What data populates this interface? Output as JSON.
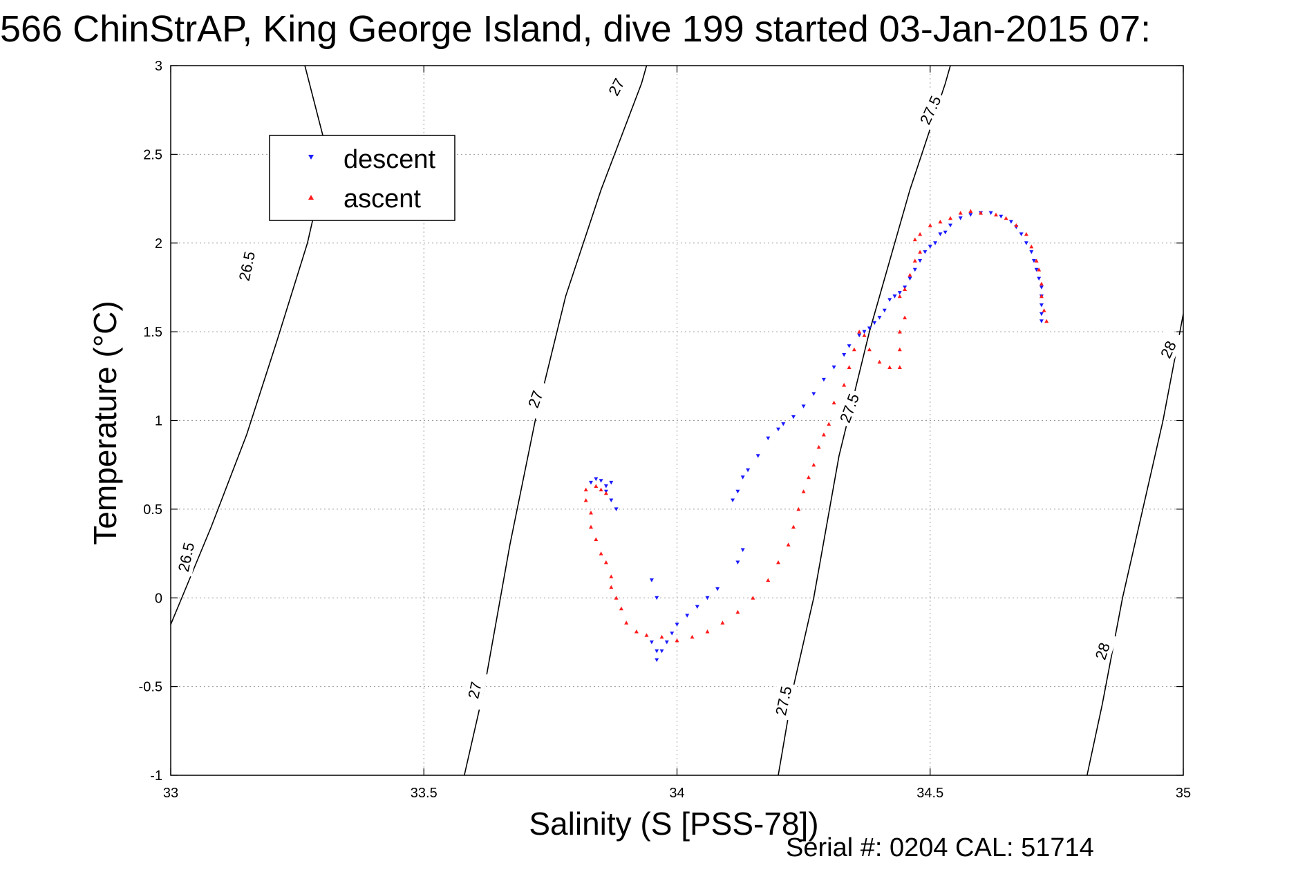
{
  "title": "566 ChinStrAP, King George Island, dive 199 started 03-Jan-2015 07:",
  "footer": "Serial #: 0204  CAL: 51714",
  "chart_data": {
    "type": "scatter",
    "title": "566 ChinStrAP, King George Island, dive 199 started 03-Jan-2015 07:",
    "xlabel": "Salinity (S [PSS-78])",
    "ylabel": "Temperature (°C)",
    "xlim": [
      33,
      35
    ],
    "ylim": [
      -1,
      3
    ],
    "xticks": [
      33,
      33.5,
      34,
      34.5,
      35
    ],
    "xtick_labels": [
      "33",
      "33.5",
      "34",
      "34.5",
      "35"
    ],
    "yticks": [
      -1,
      -0.5,
      0,
      0.5,
      1,
      1.5,
      2,
      2.5,
      3
    ],
    "ytick_labels": [
      "-1",
      "-0.5",
      "0",
      "0.5",
      "1",
      "1.5",
      "2",
      "2.5",
      "3"
    ],
    "grid": true,
    "legend": {
      "position": "upper-left",
      "entries": [
        "descent",
        "ascent"
      ]
    },
    "colors": {
      "descent": "#1a1aff",
      "ascent": "#ff1a1a"
    },
    "series": [
      {
        "name": "descent",
        "marker": "triangle-down",
        "points": [
          [
            34.72,
            1.56
          ],
          [
            34.72,
            1.6
          ],
          [
            34.72,
            1.65
          ],
          [
            34.72,
            1.7
          ],
          [
            34.72,
            1.75
          ],
          [
            34.715,
            1.8
          ],
          [
            34.71,
            1.85
          ],
          [
            34.705,
            1.9
          ],
          [
            34.7,
            1.95
          ],
          [
            34.69,
            2.0
          ],
          [
            34.68,
            2.05
          ],
          [
            34.67,
            2.09
          ],
          [
            34.66,
            2.12
          ],
          [
            34.64,
            2.15
          ],
          [
            34.62,
            2.17
          ],
          [
            34.6,
            2.17
          ],
          [
            34.58,
            2.16
          ],
          [
            34.56,
            2.14
          ],
          [
            34.54,
            2.1
          ],
          [
            34.53,
            2.06
          ],
          [
            34.52,
            2.05
          ],
          [
            34.51,
            2.0
          ],
          [
            34.5,
            1.98
          ],
          [
            34.49,
            1.95
          ],
          [
            34.48,
            1.9
          ],
          [
            34.47,
            1.85
          ],
          [
            34.46,
            1.8
          ],
          [
            34.45,
            1.75
          ],
          [
            34.44,
            1.72
          ],
          [
            34.43,
            1.7
          ],
          [
            34.42,
            1.68
          ],
          [
            34.41,
            1.62
          ],
          [
            34.4,
            1.58
          ],
          [
            34.39,
            1.55
          ],
          [
            34.38,
            1.52
          ],
          [
            34.37,
            1.5
          ],
          [
            34.36,
            1.48
          ],
          [
            34.34,
            1.42
          ],
          [
            34.33,
            1.37
          ],
          [
            34.31,
            1.3
          ],
          [
            34.29,
            1.23
          ],
          [
            34.27,
            1.15
          ],
          [
            34.25,
            1.08
          ],
          [
            34.23,
            1.02
          ],
          [
            34.21,
            0.98
          ],
          [
            34.2,
            0.95
          ],
          [
            34.18,
            0.9
          ],
          [
            34.16,
            0.8
          ],
          [
            34.14,
            0.72
          ],
          [
            34.13,
            0.68
          ],
          [
            34.12,
            0.6
          ],
          [
            34.11,
            0.55
          ],
          [
            34.13,
            0.27
          ],
          [
            34.12,
            0.2
          ],
          [
            34.08,
            0.05
          ],
          [
            34.06,
            0.0
          ],
          [
            34.04,
            -0.05
          ],
          [
            34.02,
            -0.1
          ],
          [
            34.0,
            -0.15
          ],
          [
            33.99,
            -0.2
          ],
          [
            33.98,
            -0.25
          ],
          [
            33.97,
            -0.3
          ],
          [
            33.96,
            -0.35
          ],
          [
            33.96,
            -0.3
          ],
          [
            33.95,
            -0.25
          ],
          [
            33.96,
            0.0
          ],
          [
            33.95,
            0.1
          ],
          [
            33.88,
            0.5
          ],
          [
            33.87,
            0.55
          ],
          [
            33.86,
            0.6
          ],
          [
            33.86,
            0.63
          ],
          [
            33.87,
            0.65
          ],
          [
            33.85,
            0.66
          ],
          [
            33.84,
            0.67
          ],
          [
            33.83,
            0.65
          ]
        ]
      },
      {
        "name": "ascent",
        "marker": "triangle-up",
        "points": [
          [
            34.73,
            1.56
          ],
          [
            34.725,
            1.62
          ],
          [
            34.72,
            1.7
          ],
          [
            34.72,
            1.77
          ],
          [
            34.715,
            1.85
          ],
          [
            34.71,
            1.9
          ],
          [
            34.7,
            1.98
          ],
          [
            34.69,
            2.05
          ],
          [
            34.67,
            2.1
          ],
          [
            34.65,
            2.14
          ],
          [
            34.63,
            2.16
          ],
          [
            34.6,
            2.17
          ],
          [
            34.58,
            2.18
          ],
          [
            34.56,
            2.17
          ],
          [
            34.54,
            2.14
          ],
          [
            34.52,
            2.12
          ],
          [
            34.5,
            2.1
          ],
          [
            34.48,
            2.05
          ],
          [
            34.47,
            2.02
          ],
          [
            34.48,
            1.95
          ],
          [
            34.47,
            1.9
          ],
          [
            34.46,
            1.82
          ],
          [
            34.45,
            1.74
          ],
          [
            34.44,
            1.7
          ],
          [
            34.45,
            1.58
          ],
          [
            34.44,
            1.5
          ],
          [
            34.44,
            1.4
          ],
          [
            34.44,
            1.3
          ],
          [
            34.42,
            1.3
          ],
          [
            34.4,
            1.33
          ],
          [
            34.38,
            1.4
          ],
          [
            34.37,
            1.48
          ],
          [
            34.36,
            1.5
          ],
          [
            34.35,
            1.4
          ],
          [
            34.34,
            1.3
          ],
          [
            34.33,
            1.2
          ],
          [
            34.31,
            1.1
          ],
          [
            34.3,
            0.98
          ],
          [
            34.29,
            0.92
          ],
          [
            34.28,
            0.85
          ],
          [
            34.27,
            0.75
          ],
          [
            34.26,
            0.68
          ],
          [
            34.25,
            0.6
          ],
          [
            34.24,
            0.5
          ],
          [
            34.23,
            0.4
          ],
          [
            34.22,
            0.3
          ],
          [
            34.2,
            0.2
          ],
          [
            34.18,
            0.1
          ],
          [
            34.15,
            0.0
          ],
          [
            34.12,
            -0.08
          ],
          [
            34.09,
            -0.14
          ],
          [
            34.06,
            -0.19
          ],
          [
            34.03,
            -0.22
          ],
          [
            34.0,
            -0.24
          ],
          [
            33.97,
            -0.22
          ],
          [
            33.94,
            -0.21
          ],
          [
            33.92,
            -0.19
          ],
          [
            33.9,
            -0.14
          ],
          [
            33.89,
            -0.06
          ],
          [
            33.88,
            0.0
          ],
          [
            33.87,
            0.06
          ],
          [
            33.87,
            0.12
          ],
          [
            33.86,
            0.2
          ],
          [
            33.85,
            0.25
          ],
          [
            33.84,
            0.33
          ],
          [
            33.83,
            0.4
          ],
          [
            33.83,
            0.48
          ],
          [
            33.82,
            0.55
          ],
          [
            33.82,
            0.61
          ],
          [
            33.84,
            0.63
          ],
          [
            33.85,
            0.61
          ],
          [
            33.86,
            0.59
          ]
        ]
      }
    ],
    "isopycnals": [
      {
        "sigma": "26.5",
        "points": [
          [
            33.0,
            -0.15
          ],
          [
            33.08,
            0.4
          ],
          [
            33.15,
            0.92
          ],
          [
            33.21,
            1.45
          ],
          [
            33.27,
            2.0
          ],
          [
            33.31,
            2.5
          ],
          [
            33.265,
            3.0
          ]
        ]
      },
      {
        "sigma": "27",
        "points": [
          [
            33.58,
            -1.0
          ],
          [
            33.62,
            -0.5
          ],
          [
            33.67,
            0.3
          ],
          [
            33.72,
            1.0
          ],
          [
            33.78,
            1.7
          ],
          [
            33.85,
            2.3
          ],
          [
            33.93,
            2.9
          ],
          [
            33.94,
            3.0
          ]
        ]
      },
      {
        "sigma": "27.5",
        "points": [
          [
            34.2,
            -1.0
          ],
          [
            34.23,
            -0.5
          ],
          [
            34.27,
            0.0
          ],
          [
            34.32,
            0.8
          ],
          [
            34.38,
            1.5
          ],
          [
            34.46,
            2.3
          ],
          [
            34.53,
            2.9
          ],
          [
            34.54,
            3.0
          ]
        ]
      },
      {
        "sigma": "28",
        "points": [
          [
            34.81,
            -1.0
          ],
          [
            34.84,
            -0.6
          ],
          [
            34.88,
            0.0
          ],
          [
            34.92,
            0.5
          ],
          [
            34.96,
            1.0
          ],
          [
            35.0,
            1.6
          ]
        ]
      }
    ],
    "contour_labels": [
      {
        "text": "26.5",
        "x": 33.15,
        "y": 1.87,
        "angle": -78
      },
      {
        "text": "26.5",
        "x": 33.03,
        "y": 0.23,
        "angle": -78
      },
      {
        "text": "27",
        "x": 33.88,
        "y": 2.88,
        "angle": -62
      },
      {
        "text": "27",
        "x": 33.72,
        "y": 1.12,
        "angle": -70
      },
      {
        "text": "27",
        "x": 33.6,
        "y": -0.52,
        "angle": -78
      },
      {
        "text": "27.5",
        "x": 34.5,
        "y": 2.75,
        "angle": -65
      },
      {
        "text": "27.5",
        "x": 34.34,
        "y": 1.07,
        "angle": -70
      },
      {
        "text": "27.5",
        "x": 34.21,
        "y": -0.58,
        "angle": -78
      },
      {
        "text": "28",
        "x": 34.97,
        "y": 1.4,
        "angle": -65
      },
      {
        "text": "28",
        "x": 34.84,
        "y": -0.3,
        "angle": -72
      }
    ]
  }
}
